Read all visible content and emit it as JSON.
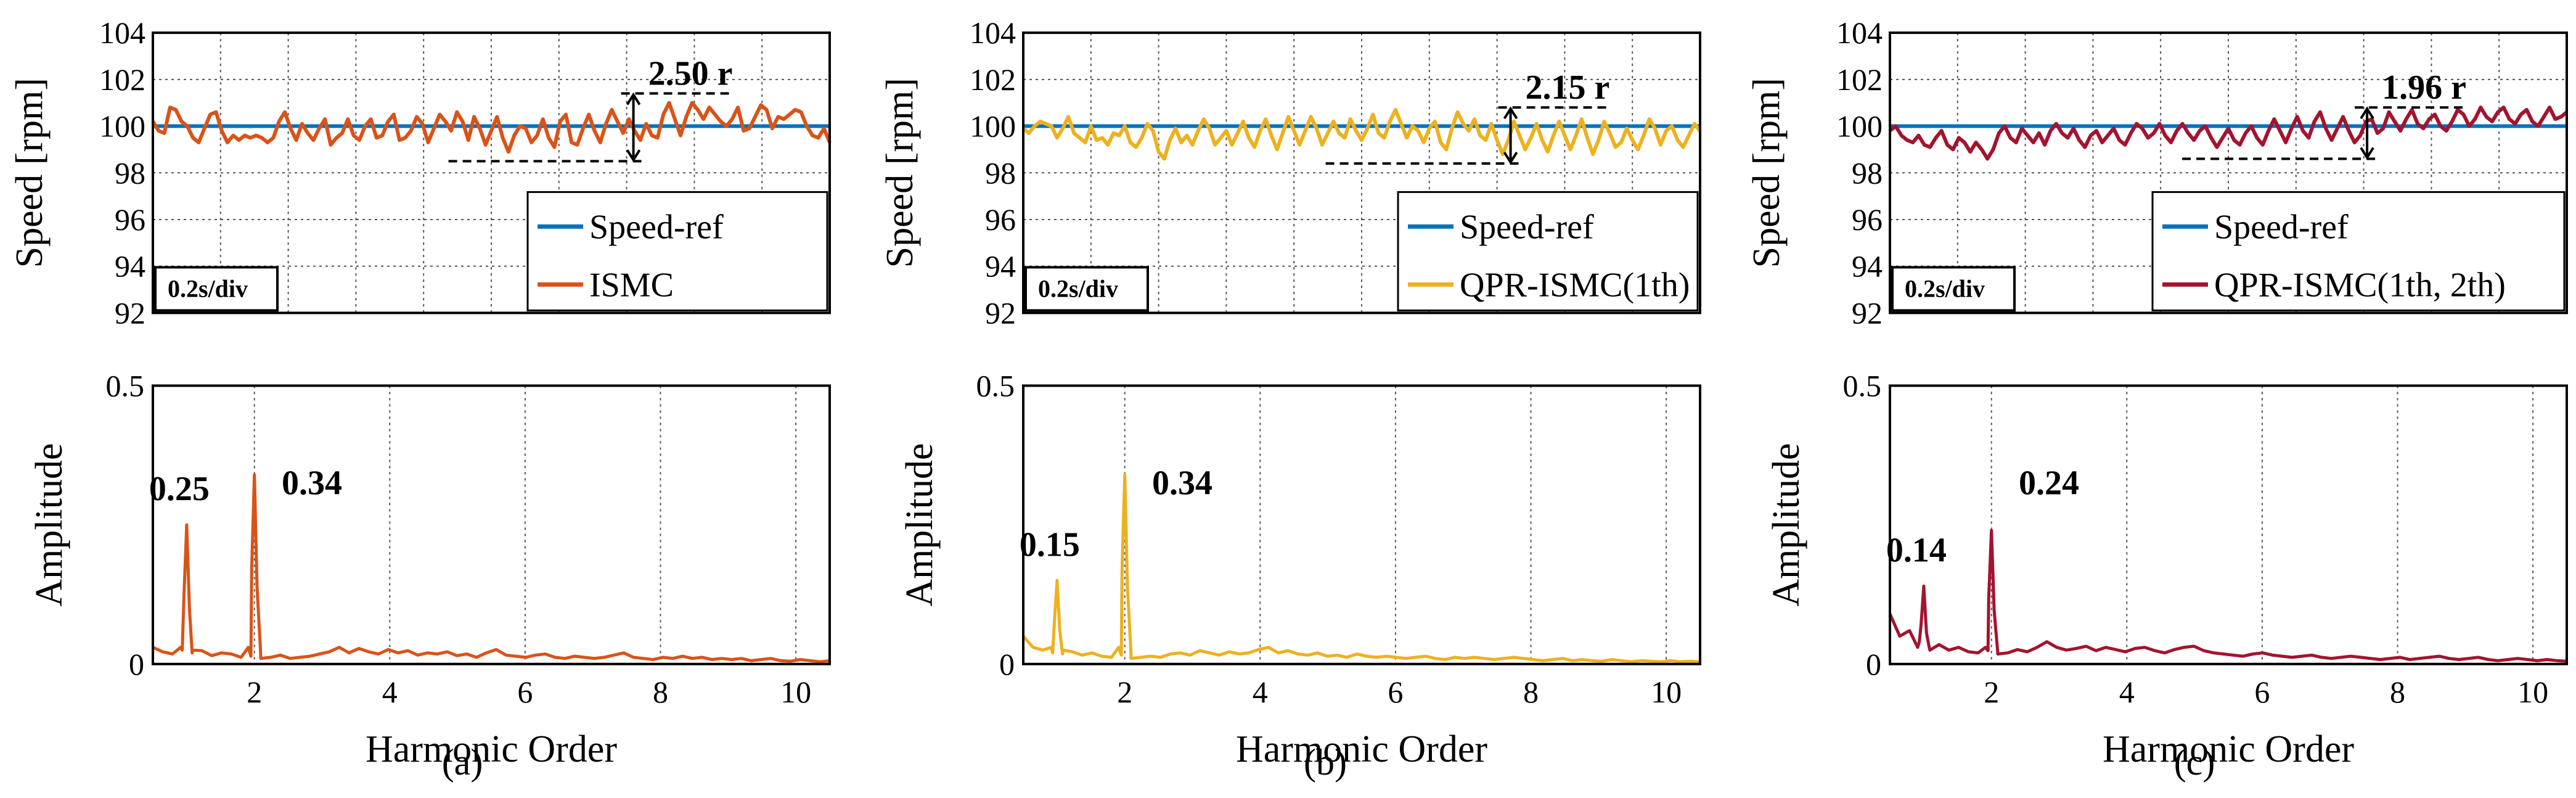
{
  "chart_data": [
    {
      "id": "a-speed",
      "type": "line",
      "panel": "a",
      "kind": "speed",
      "ylabel": "Speed [rpm]",
      "ylim": [
        92,
        104
      ],
      "yticks": [
        "92",
        "94",
        "96",
        "98",
        "100",
        "102",
        "104"
      ],
      "time_div": "0.2s/div",
      "ripple_label": "2.50 r",
      "ripple_low": 98.5,
      "ripple_high": 101.4,
      "ripple_x_frac": 0.71,
      "legend": [
        "Speed-ref",
        "ISMC"
      ],
      "series": [
        {
          "name": "Speed-ref",
          "color": "#0072BD",
          "values": [
            100,
            100
          ]
        },
        {
          "name": "ISMC",
          "color": "#D95319",
          "values": [
            100.2,
            99.8,
            99.7,
            100.8,
            100.7,
            100.2,
            100.0,
            99.5,
            99.3,
            99.9,
            100.5,
            100.6,
            99.8,
            99.3,
            99.6,
            99.4,
            99.6,
            99.5,
            99.6,
            99.5,
            99.3,
            99.5,
            100.2,
            100.6,
            99.9,
            99.4,
            100.1,
            99.7,
            99.4,
            99.9,
            100.3,
            99.2,
            99.5,
            99.7,
            100.3,
            99.6,
            99.4,
            100.0,
            100.3,
            99.5,
            99.6,
            100.2,
            100.5,
            99.4,
            99.5,
            99.8,
            100.4,
            100.1,
            99.3,
            99.9,
            100.5,
            100.2,
            99.8,
            100.6,
            100.2,
            99.4,
            100.4,
            99.9,
            99.2,
            99.8,
            100.4,
            99.5,
            98.9,
            99.6,
            100.0,
            99.9,
            99.3,
            99.6,
            100.3,
            99.5,
            99.1,
            100.2,
            100.5,
            99.3,
            99.2,
            99.9,
            100.5,
            99.8,
            99.3,
            100.1,
            100.7,
            100.2,
            99.7,
            100.3,
            99.8,
            99.4,
            100.1,
            99.6,
            99.5,
            100.5,
            101.0,
            100.3,
            99.6,
            100.4,
            101.0,
            100.7,
            100.3,
            100.8,
            100.5,
            100.2,
            100.0,
            100.3,
            100.8,
            99.8,
            99.9,
            100.4,
            100.9,
            100.7,
            99.9,
            100.4,
            100.3,
            100.5,
            100.7,
            100.6,
            100.0,
            99.6,
            99.5,
            99.9,
            99.3
          ]
        }
      ]
    },
    {
      "id": "b-speed",
      "type": "line",
      "panel": "b",
      "kind": "speed",
      "ylabel": "Speed [rpm]",
      "ylim": [
        92,
        104
      ],
      "yticks": [
        "92",
        "94",
        "96",
        "98",
        "100",
        "102",
        "104"
      ],
      "time_div": "0.2s/div",
      "ripple_label": "2.15 r",
      "ripple_low": 98.4,
      "ripple_high": 100.8,
      "ripple_x_frac": 0.72,
      "legend": [
        "Speed-ref",
        "QPR-ISMC(1th)"
      ],
      "series": [
        {
          "name": "Speed-ref",
          "color": "#0072BD",
          "values": [
            100,
            100
          ]
        },
        {
          "name": "QPR-ISMC(1th)",
          "color": "#EDB120",
          "values": [
            99.9,
            99.7,
            100.0,
            100.2,
            100.1,
            100.0,
            99.5,
            99.9,
            100.4,
            99.7,
            99.5,
            99.3,
            100.0,
            99.4,
            99.5,
            99.2,
            99.7,
            99.6,
            100.0,
            99.3,
            99.1,
            99.5,
            100.1,
            99.8,
            98.9,
            98.6,
            99.4,
            99.9,
            99.3,
            99.6,
            99.2,
            99.8,
            100.3,
            99.9,
            99.2,
            99.5,
            99.8,
            99.2,
            99.7,
            100.2,
            99.5,
            99.1,
            99.8,
            100.3,
            99.6,
            99.0,
            99.7,
            100.4,
            99.8,
            99.2,
            99.8,
            100.4,
            99.9,
            99.2,
            99.7,
            100.2,
            99.7,
            99.5,
            100.3,
            99.8,
            99.4,
            99.9,
            100.5,
            99.7,
            99.5,
            100.2,
            100.7,
            100.1,
            99.5,
            100.0,
            99.8,
            99.3,
            99.9,
            100.2,
            99.3,
            99.0,
            99.9,
            100.6,
            100.1,
            99.8,
            100.3,
            99.6,
            99.4,
            100.1,
            99.4,
            98.8,
            99.4,
            100.2,
            99.6,
            99.0,
            99.5,
            100.1,
            99.4,
            98.9,
            99.6,
            100.2,
            99.6,
            99.0,
            99.6,
            100.3,
            99.5,
            98.8,
            99.4,
            100.2,
            99.7,
            99.1,
            99.3,
            99.9,
            99.4,
            99.0,
            99.6,
            100.3,
            99.9,
            99.2,
            99.8,
            100.0,
            99.4,
            99.1,
            99.6,
            100.1,
            99.8
          ]
        }
      ]
    },
    {
      "id": "c-speed",
      "type": "line",
      "panel": "c",
      "kind": "speed",
      "ylabel": "Speed [rpm]",
      "ylim": [
        92,
        104
      ],
      "yticks": [
        "92",
        "94",
        "96",
        "98",
        "100",
        "102",
        "104"
      ],
      "time_div": "0.2s/div",
      "ripple_label": "1.96 r",
      "ripple_low": 98.6,
      "ripple_high": 100.8,
      "ripple_x_frac": 0.705,
      "legend": [
        "Speed-ref",
        "QPR-ISMC(1th, 2th)"
      ],
      "series": [
        {
          "name": "Speed-ref",
          "color": "#0072BD",
          "values": [
            100,
            100
          ]
        },
        {
          "name": "QPR-ISMC(1th, 2th)",
          "color": "#A2142F",
          "values": [
            99.8,
            100.0,
            99.6,
            99.4,
            99.3,
            99.6,
            99.2,
            99.1,
            99.5,
            99.8,
            99.2,
            99.0,
            99.5,
            99.3,
            98.9,
            99.3,
            99.0,
            98.6,
            99.0,
            99.7,
            100.0,
            99.5,
            99.3,
            99.9,
            99.6,
            99.3,
            99.7,
            99.2,
            99.8,
            100.1,
            99.7,
            99.5,
            99.9,
            99.4,
            99.1,
            99.6,
            99.8,
            99.3,
            99.6,
            99.9,
            99.4,
            99.2,
            99.7,
            100.1,
            99.9,
            99.5,
            99.7,
            100.1,
            99.6,
            99.3,
            99.8,
            100.1,
            99.7,
            99.4,
            99.8,
            100.0,
            99.5,
            99.1,
            99.5,
            99.9,
            99.4,
            99.2,
            99.7,
            100.0,
            99.5,
            99.2,
            99.8,
            100.3,
            99.8,
            99.3,
            99.9,
            100.4,
            99.8,
            99.5,
            100.2,
            100.6,
            99.9,
            99.4,
            99.9,
            100.4,
            99.8,
            99.3,
            99.6,
            100.2,
            100.3,
            99.7,
            99.9,
            100.6,
            100.2,
            99.8,
            100.3,
            100.7,
            100.1,
            99.9,
            100.3,
            100.5,
            100.0,
            99.8,
            100.2,
            100.7,
            100.5,
            100.0,
            100.3,
            100.8,
            100.4,
            100.2,
            100.6,
            100.8,
            100.3,
            100.1,
            100.5,
            100.7,
            100.2,
            100.0,
            100.4,
            100.8,
            100.3,
            100.4,
            100.6
          ]
        }
      ]
    },
    {
      "id": "a-fft",
      "type": "line",
      "panel": "a",
      "kind": "fft",
      "xlabel": "Harmonic Order",
      "ylabel": "Amplitude",
      "xlim": [
        0.5,
        10.5
      ],
      "ylim": [
        0,
        0.5
      ],
      "xticks": [
        "2",
        "4",
        "6",
        "8",
        "10"
      ],
      "yticks": [
        "0",
        "0.5"
      ],
      "color": "#D95319",
      "name": "ISMC",
      "peaks": [
        {
          "order": 1,
          "amplitude": 0.25,
          "label": "0.25"
        },
        {
          "order": 2,
          "amplitude": 0.34,
          "label": "0.34"
        }
      ],
      "noise": [
        0.03,
        0.022,
        0.018,
        0.025,
        0.02,
        0.024,
        0.015,
        0.02,
        0.018,
        0.012,
        0.014,
        0.01,
        0.012,
        0.016,
        0.01,
        0.012,
        0.014,
        0.018,
        0.022,
        0.03,
        0.02,
        0.028,
        0.022,
        0.018,
        0.026,
        0.02,
        0.024,
        0.016,
        0.02,
        0.018,
        0.022,
        0.015,
        0.018,
        0.012,
        0.02,
        0.026,
        0.016,
        0.014,
        0.012,
        0.016,
        0.018,
        0.012,
        0.01,
        0.014,
        0.012,
        0.01,
        0.012,
        0.016,
        0.02,
        0.012,
        0.01,
        0.008,
        0.012,
        0.01,
        0.014,
        0.01,
        0.012,
        0.008,
        0.01,
        0.008,
        0.01,
        0.006,
        0.008,
        0.01,
        0.006,
        0.005,
        0.008,
        0.006,
        0.004,
        0.006
      ]
    },
    {
      "id": "b-fft",
      "type": "line",
      "panel": "b",
      "kind": "fft",
      "xlabel": "Harmonic Order",
      "ylabel": "Amplitude",
      "xlim": [
        0.5,
        10.5
      ],
      "ylim": [
        0,
        0.5
      ],
      "xticks": [
        "2",
        "4",
        "6",
        "8",
        "10"
      ],
      "yticks": [
        "0",
        "0.5"
      ],
      "color": "#EDB120",
      "name": "QPR-ISMC(1th)",
      "peaks": [
        {
          "order": 1,
          "amplitude": 0.15,
          "label": "0.15"
        },
        {
          "order": 2,
          "amplitude": 0.34,
          "label": "0.34"
        }
      ],
      "noise": [
        0.05,
        0.03,
        0.025,
        0.02,
        0.018,
        0.022,
        0.016,
        0.02,
        0.014,
        0.012,
        0.016,
        0.01,
        0.012,
        0.014,
        0.012,
        0.018,
        0.02,
        0.016,
        0.024,
        0.02,
        0.016,
        0.022,
        0.018,
        0.02,
        0.026,
        0.03,
        0.02,
        0.024,
        0.018,
        0.016,
        0.02,
        0.014,
        0.016,
        0.012,
        0.018,
        0.014,
        0.012,
        0.014,
        0.012,
        0.01,
        0.012,
        0.014,
        0.01,
        0.008,
        0.012,
        0.01,
        0.012,
        0.01,
        0.008,
        0.01,
        0.012,
        0.01,
        0.008,
        0.006,
        0.008,
        0.01,
        0.006,
        0.008,
        0.006,
        0.005,
        0.008,
        0.006,
        0.004,
        0.006,
        0.005,
        0.004,
        0.006,
        0.004,
        0.005,
        0.004
      ]
    },
    {
      "id": "c-fft",
      "type": "line",
      "panel": "c",
      "kind": "fft",
      "xlabel": "Harmonic Order",
      "ylabel": "Amplitude",
      "xlim": [
        0.5,
        10.5
      ],
      "ylim": [
        0,
        0.5
      ],
      "xticks": [
        "2",
        "4",
        "6",
        "8",
        "10"
      ],
      "yticks": [
        "0",
        "0.5"
      ],
      "color": "#A2142F",
      "name": "QPR-ISMC(1th, 2th)",
      "peaks": [
        {
          "order": 1,
          "amplitude": 0.14,
          "label": "0.14"
        },
        {
          "order": 2,
          "amplitude": 0.24,
          "label": "0.24"
        }
      ],
      "noise": [
        0.09,
        0.05,
        0.06,
        0.04,
        0.03,
        0.035,
        0.025,
        0.03,
        0.022,
        0.02,
        0.024,
        0.018,
        0.02,
        0.026,
        0.022,
        0.03,
        0.04,
        0.03,
        0.025,
        0.028,
        0.032,
        0.024,
        0.03,
        0.026,
        0.022,
        0.028,
        0.03,
        0.024,
        0.02,
        0.026,
        0.03,
        0.032,
        0.024,
        0.02,
        0.018,
        0.016,
        0.014,
        0.018,
        0.02,
        0.016,
        0.014,
        0.012,
        0.014,
        0.016,
        0.012,
        0.01,
        0.012,
        0.014,
        0.012,
        0.01,
        0.008,
        0.01,
        0.012,
        0.008,
        0.01,
        0.012,
        0.014,
        0.01,
        0.008,
        0.01,
        0.012,
        0.008,
        0.006,
        0.008,
        0.01,
        0.008,
        0.006,
        0.008,
        0.006,
        0.005
      ]
    }
  ],
  "subfigure_labels": [
    "(a)",
    "(b)",
    "(c)"
  ]
}
